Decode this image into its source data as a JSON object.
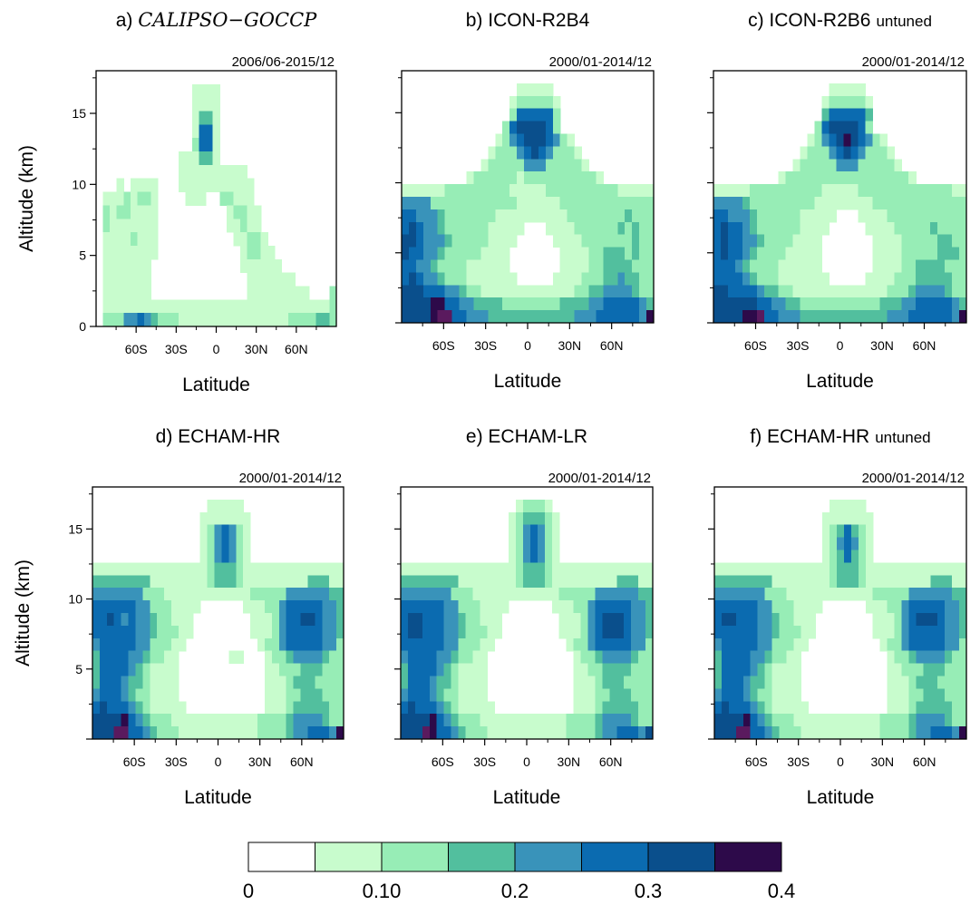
{
  "chart_data": [
    {
      "id": "a",
      "type": "heatmap",
      "title_prefix": "a)",
      "title": "CALIPSO−GOCCP",
      "title_suffix": "",
      "period": "2006/06-2015/12",
      "xlabel": "Latitude",
      "ylabel": "Altitude (km)",
      "xlim": [
        -90,
        90
      ],
      "ylim": [
        0,
        18
      ],
      "xticks": [
        "60S",
        "30S",
        "0",
        "30N",
        "60N"
      ],
      "yticks": [
        "0",
        "5",
        "10",
        "15"
      ],
      "rows": [
        "00000000000000000000000000000000000",
        "00000000000000111100000000000000000",
        "00000000000000111100000000000000000",
        "00000000000000133100000000000000000",
        "00000000000000155100000000000000000",
        "00000000000000255100000000000000000",
        "00000000000011133100000000000000000",
        "00000000000011111111110000000000000",
        "00010111100011111111111000000000000",
        "01112122100001110022111000000000000",
        "02122111100000000001221100000000000",
        "02111111100000000001121100000000000",
        "01111211100000000000112210000000000",
        "01111111100000000000012211000000000",
        "01111111000000000000011111100000000",
        "01111111000000000000001111111000000",
        "01111111000000000000001111111110002",
        "01111111111111111111111111111111112",
        "02224454322211111111111111112222332"
      ]
    },
    {
      "id": "b",
      "type": "heatmap",
      "title_prefix": "",
      "title": "b) ICON-R2B4",
      "title_suffix": "",
      "period": "2000/01-2014/12",
      "xlabel": "Latitude",
      "ylabel": "",
      "xlim": [
        -90,
        90
      ],
      "ylim": [
        0,
        18
      ],
      "xticks": [
        "60S",
        "30S",
        "0",
        "30N",
        "60N"
      ],
      "yticks": [
        "",
        "",
        "",
        ""
      ],
      "rows": [
        "00000000000000000000000000000000000",
        "00000000000000001111100000000000000",
        "00000000000000012222210000000000000",
        "00000000000000025555520000000000000",
        "00000000000000256666520000000000000",
        "00000000000001245666542100000000000",
        "00000000000012224565422210000000000",
        "00000000000122222444222221000000000",
        "00000000012222221222222222210000000",
        "11111122222222211111222222222211111",
        "44442222222222221111112222222222222",
        "55444322222221111111111222222223222",
        "56544322222211111000111122222232322",
        "66544432222211110000011112222222322",
        "65544322222111100000001111223332322",
        "55443222211111100000001111223333222",
        "56544322211111110000011112223343322",
        "66655544322111111111111122334444322",
        "66667755443333222222223333445555543",
        "66667885544433333333333344455555547"
      ]
    },
    {
      "id": "c",
      "type": "heatmap",
      "title_prefix": "",
      "title": "c) ICON-R2B6",
      "title_suffix": "untuned",
      "period": "2000/01-2014/12",
      "xlabel": "Latitude",
      "ylabel": "",
      "xlim": [
        -90,
        90
      ],
      "ylim": [
        0,
        18
      ],
      "xticks": [
        "60S",
        "30S",
        "0",
        "30N",
        "60N"
      ],
      "yticks": [
        "",
        "",
        "",
        ""
      ],
      "rows": [
        "00000000000000000000000000000000000",
        "00000000000000001111100000000000000",
        "00000000000000012222210000000000000",
        "00000000000000035555530000000000000",
        "00000000000000256666520000000000000",
        "00000000000001245676542100000000000",
        "00000000000012224565422210000000000",
        "00000000000122222444222221000000000",
        "00000000012222222222222222210000000",
        "11111222222222211111222222222222211",
        "44443222222222111111112222222222222",
        "55444322222211111000111122222222222",
        "56554322222211110000011112222232222",
        "56554432222111100000001111222223322",
        "56554322221111100000001111222223332",
        "55543222211111100000001111223333222",
        "55554322211111110000011112223333322",
        "66555543322111111111111122234444322",
        "66666655443322222222222333445555543",
        "66667785544433333333333344455555547"
      ]
    },
    {
      "id": "d",
      "type": "heatmap",
      "title_prefix": "",
      "title": "d) ECHAM-HR",
      "title_suffix": "",
      "period": "2000/01-2014/12",
      "xlabel": "Latitude",
      "ylabel": "Altitude (km)",
      "xlim": [
        -90,
        90
      ],
      "ylim": [
        0,
        18
      ],
      "xticks": [
        "60S",
        "30S",
        "0",
        "30N",
        "60N"
      ],
      "yticks": [
        "",
        "5",
        "10",
        "15"
      ],
      "rows": [
        "00000000000000000000000000000000000",
        "00000000000000001111100000000000000",
        "00000000000000011111110000000000000",
        "00000000000000012454210000000000000",
        "00000000000000012454210000000000000",
        "00000000000000012454210000000000000",
        "11111111111111112333211111111111111",
        "33333333111111112333211111111133311",
        "44444442221111111111112222244444433",
        "55555544222111100000011122455555443",
        "55654544322111000000001112455665443",
        "55555544322211000000001112455555443",
        "45555544222110000000000122455555442",
        "35555443221100000001100012234444322",
        "35555432111100000000000011222333222",
        "35554332111100000000000011123332222",
        "45554322111100000000000011122333222",
        "56555432111110000000000011123333322",
        "66667543222111111111111222234444322",
        "66688554322211111111111222234455547"
      ]
    },
    {
      "id": "e",
      "type": "heatmap",
      "title_prefix": "",
      "title": "e) ECHAM-LR",
      "title_suffix": "",
      "period": "2000/01-2014/12",
      "xlabel": "Latitude",
      "ylabel": "",
      "xlim": [
        -90,
        90
      ],
      "ylim": [
        0,
        18
      ],
      "xticks": [
        "60S",
        "30S",
        "0",
        "30N",
        "60N"
      ],
      "yticks": [
        "",
        "",
        "",
        ""
      ],
      "rows": [
        "00000000000000000000000000000000000",
        "00000000000000001222100000000000000",
        "00000000000000012333210000000000000",
        "00000000000000012454210000000000000",
        "00000000000000012454210000000000000",
        "00000000000000012454210000000000000",
        "11111111111111112333211111111111111",
        "33333333111111112333211111111133311",
        "44444442221111111111112222244444433",
        "55555544222111100000011122455555443",
        "56655544322111000000001112456665443",
        "56655544322211000000001112456665443",
        "55555544222110000000000122455555442",
        "45555443221100000000000012234444322",
        "35555432111100000000000011223333222",
        "35554332111100000000000011123332222",
        "45554322111100000000000011122333222",
        "56555432111110000000000011123333322",
        "66667543222111111111111222234444322",
        "66687554322211111111111222234455546"
      ]
    },
    {
      "id": "f",
      "type": "heatmap",
      "title_prefix": "",
      "title": "f) ECHAM-HR",
      "title_suffix": "untuned",
      "period": "2000/01-2014/12",
      "xlabel": "Latitude",
      "ylabel": "",
      "xlim": [
        -90,
        90
      ],
      "ylim": [
        0,
        18
      ],
      "xticks": [
        "60S",
        "30S",
        "0",
        "30N",
        "60N"
      ],
      "yticks": [
        "",
        "",
        "",
        ""
      ],
      "rows": [
        "00000000000000000000000000000000000",
        "00000000000000001111100000000000000",
        "00000000000000011111110000000000000",
        "00000000000000012353210000000000000",
        "00000000000000012454210000000000000",
        "00000000000000012353210000000000000",
        "11111111111111112333211111111111111",
        "33333333111111112333211111111133311",
        "44444442221111111111112222244444433",
        "55555544222111100000011122455555443",
        "56655544322111000000001112456665443",
        "55555544322211000000001112455555443",
        "45555544222110000000000122455555442",
        "35555443221100000000000012234444322",
        "35555432111100000000000011222333222",
        "35554332111100000000000011123332222",
        "45554322111100000000000011122333222",
        "56555432111110000000000011123333322",
        "66667543222111111111111222234444322",
        "66688554322211111111111222234455547"
      ]
    }
  ],
  "colorbar": {
    "colors": [
      "#ffffff",
      "#c8fccd",
      "#97edb6",
      "#52bf9e",
      "#3993ba",
      "#0b6bb0",
      "#0a4f8c",
      "#2d0a4a"
    ],
    "labels": [
      "0",
      "0.10",
      "0.2",
      "0.3",
      "0.4"
    ],
    "extra_colors": [
      "#5a1a5e"
    ]
  }
}
